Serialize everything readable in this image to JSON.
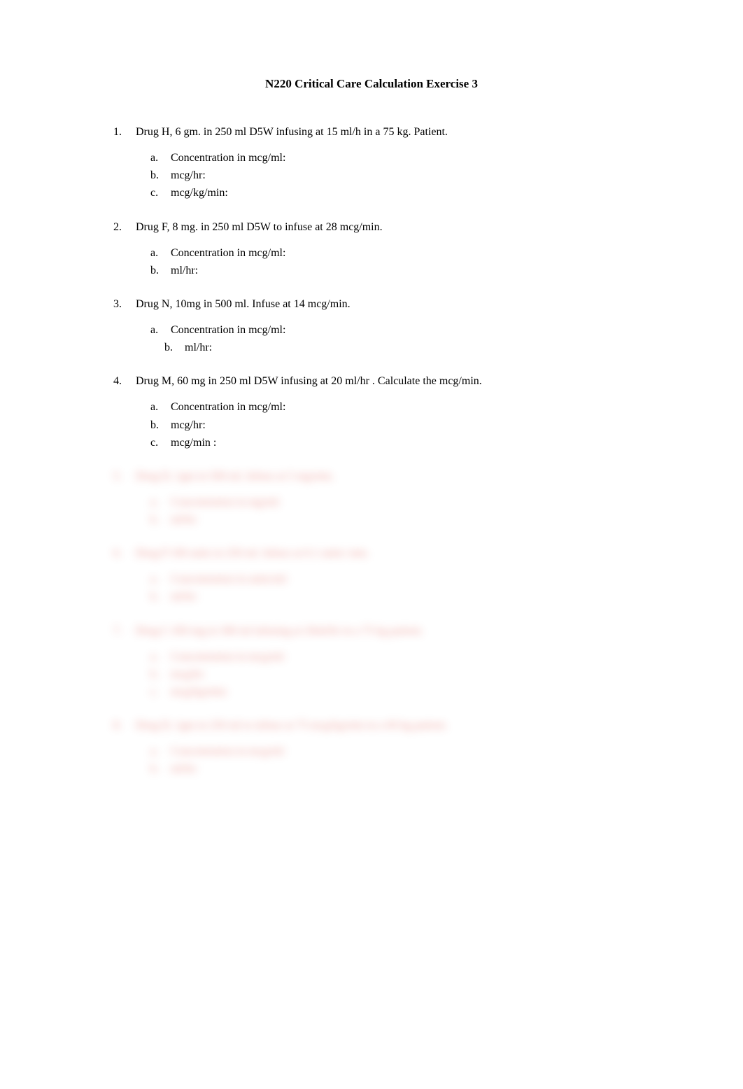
{
  "title": "N220 Critical Care Calculation Exercise 3",
  "questions": [
    {
      "number": "1.",
      "text": "Drug H, 6 gm. in 250 ml D5W infusing at 15 ml/h in a 75 kg. Patient.",
      "subs": [
        {
          "letter": "a.",
          "text": "Concentration in mcg/ml:"
        },
        {
          "letter": "b.",
          "text": "mcg/hr:"
        },
        {
          "letter": "c.",
          "text": "mcg/kg/min:"
        }
      ]
    },
    {
      "number": "2.",
      "text": "Drug F, 8 mg. in 250 ml D5W to infuse at 28 mcg/min.",
      "subs": [
        {
          "letter": "a.",
          "text": "Concentration in mcg/ml:"
        },
        {
          "letter": "b.",
          "text": "ml/hr:"
        }
      ]
    },
    {
      "number": "3.",
      "text": "Drug N, 10mg in 500 ml. Infuse at 14 mcg/min.",
      "subs": [
        {
          "letter": "a.",
          "text": "Concentration in mcg/ml:"
        },
        {
          "letter": "b.",
          "text": "ml/hr:",
          "offset": true
        }
      ]
    },
    {
      "number": "4.",
      "text": "Drug M, 60 mg in 250 ml D5W infusing at 20 ml/hr . Calculate the mcg/min.",
      "subs": [
        {
          "letter": "a.",
          "text": "Concentration in mcg/ml:"
        },
        {
          "letter": "b.",
          "text": "mcg/hr:"
        },
        {
          "letter": "c.",
          "text": "mcg/min :"
        }
      ]
    }
  ],
  "blurred": [
    {
      "number": "5.",
      "text": "Drug D, 1gm in 500 ml. Infuse at 5 mg/min.",
      "subs": [
        {
          "letter": "a.",
          "text": "Concentration in mg/ml:"
        },
        {
          "letter": "b.",
          "text": "ml/hr:"
        }
      ]
    },
    {
      "number": "6.",
      "text": "Drug P 100 units in 250 ml.  Infuse at 0.1 units/ min.",
      "subs": [
        {
          "letter": "a.",
          "text": "Concentration in units/ml:"
        },
        {
          "letter": "b.",
          "text": "ml/hr:"
        }
      ]
    },
    {
      "number": "7.",
      "text": "Drug C 450 mg in 300 ml infusing at 20ml/hr in a 75 kg patient.",
      "subs": [
        {
          "letter": "a.",
          "text": "Concentration in mcg/ml:"
        },
        {
          "letter": "b.",
          "text": "mcg/hr:"
        },
        {
          "letter": "c.",
          "text": "mcg/kg/min:"
        }
      ]
    },
    {
      "number": "8.",
      "text": "Drug D, 1gm in 250 ml to infuse at 75 mcg/kg/min in a 60 kg patient.",
      "subs": [
        {
          "letter": "a.",
          "text": "Concentration in mcg/ml:"
        },
        {
          "letter": "b.",
          "text": "ml/hr:"
        }
      ]
    }
  ],
  "colors": {
    "background": "#ffffff",
    "text": "#000000",
    "blurred_text": "#d8362a"
  },
  "typography": {
    "title_fontsize": 17,
    "title_weight": "bold",
    "body_fontsize": 16,
    "font_family": "Times New Roman"
  }
}
